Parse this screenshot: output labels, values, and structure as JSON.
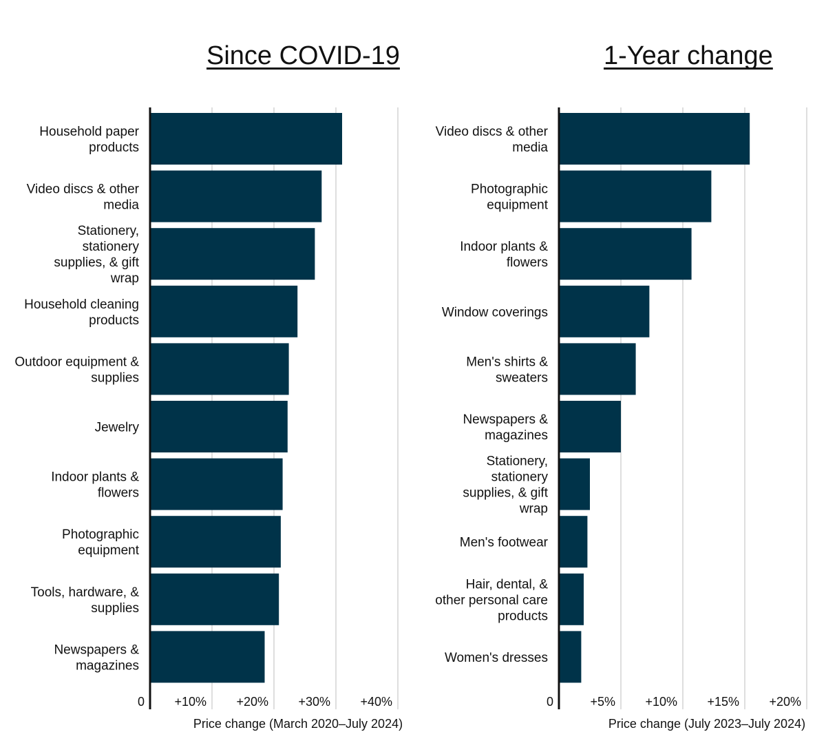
{
  "colors": {
    "bar": "#003349",
    "grid": "#d4d4d4",
    "axis": "#111111"
  },
  "chart_data": [
    {
      "type": "bar",
      "orientation": "horizontal",
      "title": "Since COVID-19",
      "xlabel": "Price change (March 2020–July 2024)",
      "categories": [
        "Household paper products",
        "Video discs & other media",
        "Stationery, stationery supplies, & gift wrap",
        "Household cleaning products",
        "Outdoor equipment & supplies",
        "Jewelry",
        "Indoor plants & flowers",
        "Photographic equipment",
        "Tools, hardware, & supplies",
        "Newspapers & magazines"
      ],
      "values": [
        31.0,
        27.7,
        26.6,
        23.8,
        22.4,
        22.2,
        21.4,
        21.1,
        20.8,
        18.5
      ],
      "xlim": [
        0,
        40
      ],
      "ticks": [
        {
          "value": 0,
          "label": "0"
        },
        {
          "value": 10,
          "label": "+10%"
        },
        {
          "value": 20,
          "label": "+20%"
        },
        {
          "value": 30,
          "label": "+30%"
        },
        {
          "value": 40,
          "label": "+40%"
        }
      ],
      "grid": true,
      "legend": "none"
    },
    {
      "type": "bar",
      "orientation": "horizontal",
      "title": "1-Year change",
      "xlabel": "Price change (July 2023–July 2024)",
      "categories": [
        "Video discs & other media",
        "Photographic equipment",
        "Indoor plants & flowers",
        "Window coverings",
        "Men's shirts & sweaters",
        "Newspapers & magazines",
        "Stationery, stationery supplies, & gift wrap",
        "Men's footwear",
        "Hair, dental, & other personal care products",
        "Women's dresses"
      ],
      "values": [
        15.4,
        12.3,
        10.7,
        7.3,
        6.2,
        5.0,
        2.5,
        2.3,
        2.0,
        1.8
      ],
      "xlim": [
        0,
        20
      ],
      "ticks": [
        {
          "value": 0,
          "label": "0"
        },
        {
          "value": 5,
          "label": "+5%"
        },
        {
          "value": 10,
          "label": "+10%"
        },
        {
          "value": 15,
          "label": "+15%"
        },
        {
          "value": 20,
          "label": "+20%"
        }
      ],
      "grid": true,
      "legend": "none"
    }
  ]
}
